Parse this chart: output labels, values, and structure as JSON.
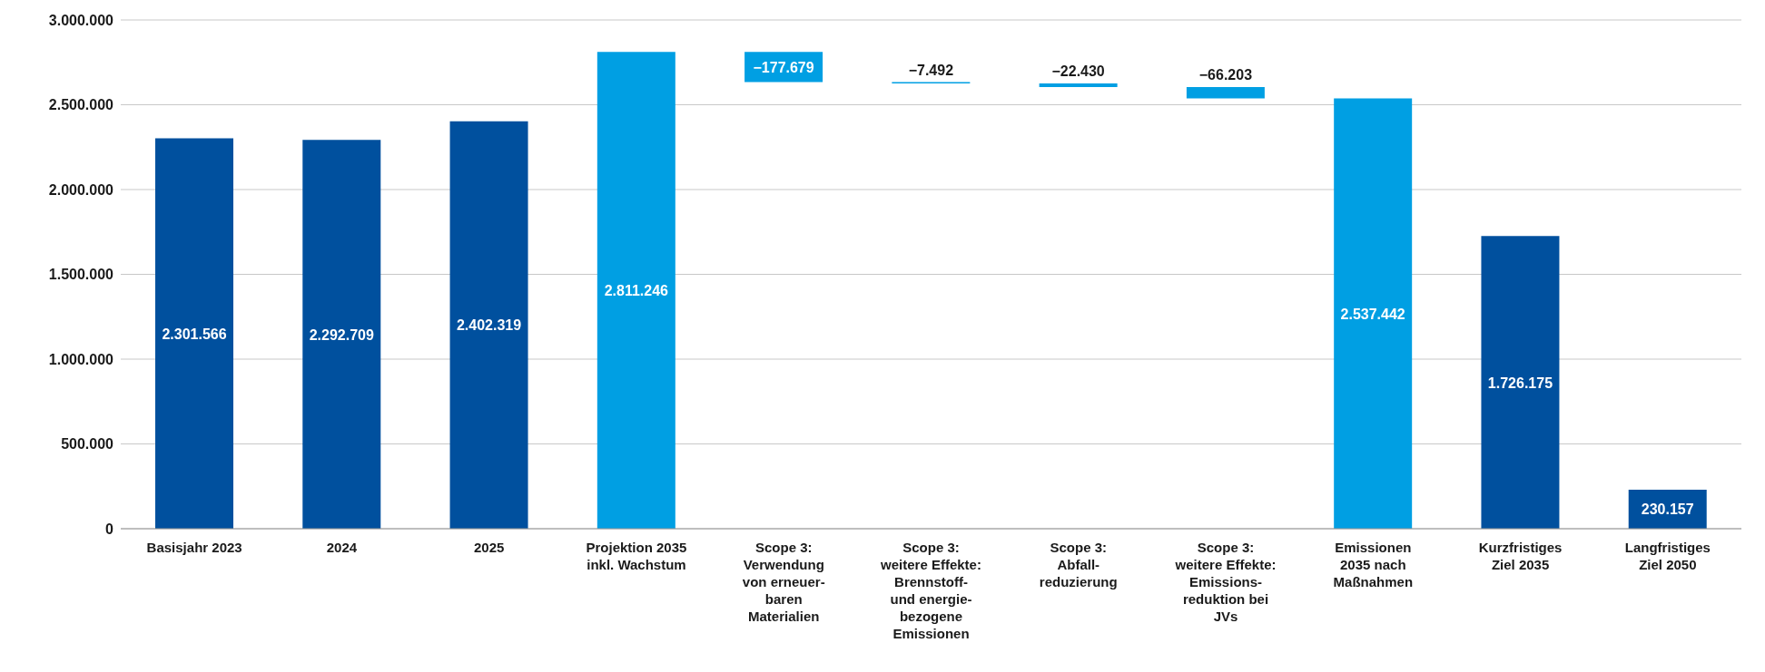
{
  "chart_data": {
    "type": "bar",
    "categories": [
      "Basisjahr 2023",
      "2024",
      "2025",
      "Projektion 2035\ninkl. Wachstum",
      "Scope 3:\nVerwendung\nvon erneuer-\nbaren\nMaterialien",
      "Scope 3:\nweitere Effekte:\nBrennstoff-\nund energie-\nbezogene\nEmissionen",
      "Scope 3:\nAbfall-\nreduzierung",
      "Scope 3:\nweitere Effekte:\nEmissions-\nreduktion bei\nJVs",
      "Emissionen\n2035 nach\nMaßnahmen",
      "Kurzfristiges\nZiel 2035",
      "Langfristiges\nZiel 2050"
    ],
    "values": [
      2301566,
      2292709,
      2402319,
      2811246,
      -177679,
      -7492,
      -22430,
      -66203,
      2537442,
      1726175,
      230157
    ],
    "base": [
      0,
      0,
      0,
      0,
      2811246,
      2633567,
      2626075,
      2603645,
      0,
      0,
      0
    ],
    "colors": [
      "#00509e",
      "#00509e",
      "#00509e",
      "#009fe3",
      "#009fe3",
      "#009fe3",
      "#009fe3",
      "#009fe3",
      "#009fe3",
      "#00509e",
      "#00509e"
    ],
    "value_labels": [
      "2.301.566",
      "2.292.709",
      "2.402.319",
      "2.811.246",
      "−177.679",
      "−7.492",
      "−22.430",
      "−66.203",
      "2.537.442",
      "1.726.175",
      "230.157"
    ],
    "ylim": [
      0,
      3000000
    ],
    "yticks": [
      {
        "value": 0,
        "label": "0"
      },
      {
        "value": 500000,
        "label": "500.000"
      },
      {
        "value": 1000000,
        "label": "1.000.000"
      },
      {
        "value": 1500000,
        "label": "1.500.000"
      },
      {
        "value": 2000000,
        "label": "2.000.000"
      },
      {
        "value": 2500000,
        "label": "2.500.000"
      },
      {
        "value": 3000000,
        "label": "3.000.000"
      }
    ],
    "grid": "y",
    "legend": false
  }
}
